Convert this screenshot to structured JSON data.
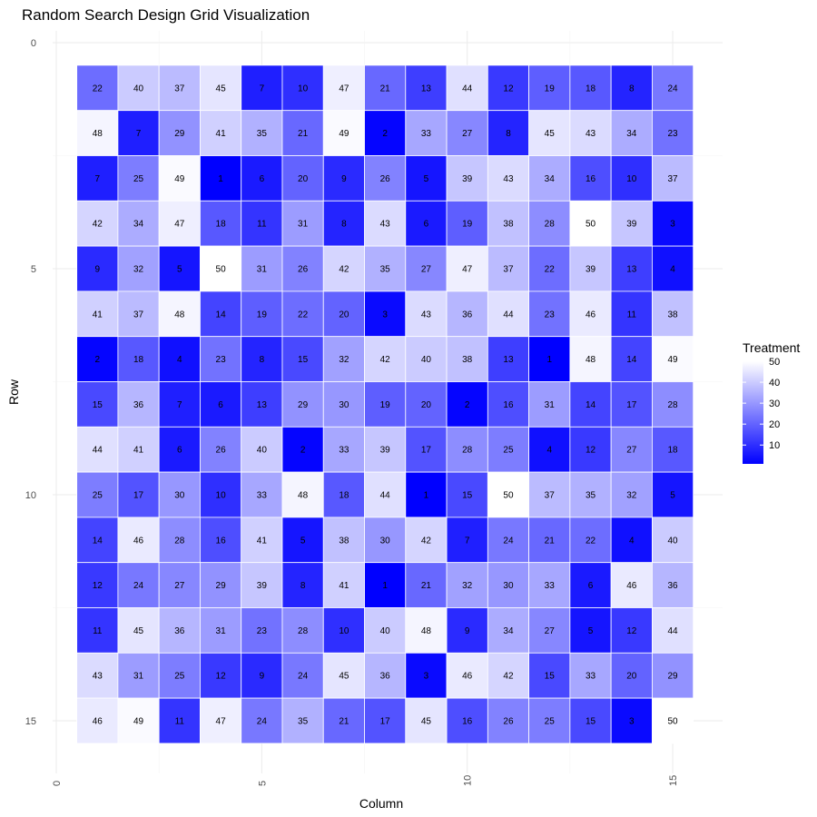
{
  "chart_data": {
    "type": "heatmap",
    "title": "Random Search Design Grid Visualization",
    "xlabel": "Column",
    "ylabel": "Row",
    "xlim": [
      0,
      15.5
    ],
    "ylim": [
      0,
      15.5
    ],
    "y_reversed": true,
    "x_ticks": [
      0,
      5,
      10,
      15
    ],
    "x_tick_labels": [
      "0",
      "5",
      "10",
      "15"
    ],
    "y_ticks": [
      0,
      5,
      10,
      15
    ],
    "y_tick_labels": [
      "0",
      "5",
      "10",
      "15"
    ],
    "rows": [
      1,
      2,
      3,
      4,
      5,
      6,
      7,
      8,
      9,
      10,
      11,
      12,
      13,
      14,
      15
    ],
    "columns": [
      1,
      2,
      3,
      4,
      5,
      6,
      7,
      8,
      9,
      10,
      11,
      12,
      13,
      14,
      15
    ],
    "values": [
      [
        22,
        40,
        37,
        45,
        7,
        10,
        47,
        21,
        13,
        44,
        12,
        19,
        18,
        8,
        24
      ],
      [
        48,
        7,
        29,
        41,
        35,
        21,
        49,
        2,
        33,
        27,
        8,
        45,
        43,
        34,
        23
      ],
      [
        7,
        25,
        49,
        1,
        6,
        20,
        9,
        26,
        5,
        39,
        43,
        34,
        16,
        10,
        37
      ],
      [
        42,
        34,
        47,
        18,
        11,
        31,
        8,
        43,
        6,
        19,
        38,
        28,
        50,
        39,
        3
      ],
      [
        9,
        32,
        5,
        50,
        31,
        26,
        42,
        35,
        27,
        47,
        37,
        22,
        39,
        13,
        4
      ],
      [
        41,
        37,
        48,
        14,
        19,
        22,
        20,
        3,
        43,
        36,
        44,
        23,
        46,
        11,
        38
      ],
      [
        2,
        18,
        4,
        23,
        8,
        15,
        32,
        42,
        40,
        38,
        13,
        1,
        48,
        14,
        49
      ],
      [
        15,
        36,
        7,
        6,
        13,
        29,
        30,
        19,
        20,
        2,
        16,
        31,
        14,
        17,
        28
      ],
      [
        44,
        41,
        6,
        26,
        40,
        2,
        33,
        39,
        17,
        28,
        25,
        4,
        12,
        27,
        18
      ],
      [
        25,
        17,
        30,
        10,
        33,
        48,
        18,
        44,
        1,
        15,
        50,
        37,
        35,
        32,
        5
      ],
      [
        14,
        46,
        28,
        16,
        41,
        5,
        38,
        30,
        42,
        7,
        24,
        21,
        22,
        4,
        40
      ],
      [
        12,
        24,
        27,
        29,
        39,
        8,
        41,
        1,
        21,
        32,
        30,
        33,
        6,
        46,
        36
      ],
      [
        11,
        45,
        36,
        31,
        23,
        28,
        10,
        40,
        48,
        9,
        34,
        27,
        5,
        12,
        44
      ],
      [
        43,
        31,
        25,
        12,
        9,
        24,
        45,
        36,
        3,
        46,
        42,
        15,
        33,
        20,
        29
      ],
      [
        46,
        49,
        11,
        47,
        24,
        35,
        21,
        17,
        45,
        16,
        26,
        25,
        15,
        3,
        50
      ]
    ],
    "color_scale": {
      "low": "#0000ff",
      "high": "#ffffff",
      "min": 1,
      "max": 50
    },
    "legend": {
      "title": "Treatment",
      "ticks": [
        10,
        20,
        30,
        40,
        50
      ],
      "tick_labels": [
        "10",
        "20",
        "30",
        "40",
        "50"
      ],
      "placement": "right"
    },
    "grid": true
  }
}
